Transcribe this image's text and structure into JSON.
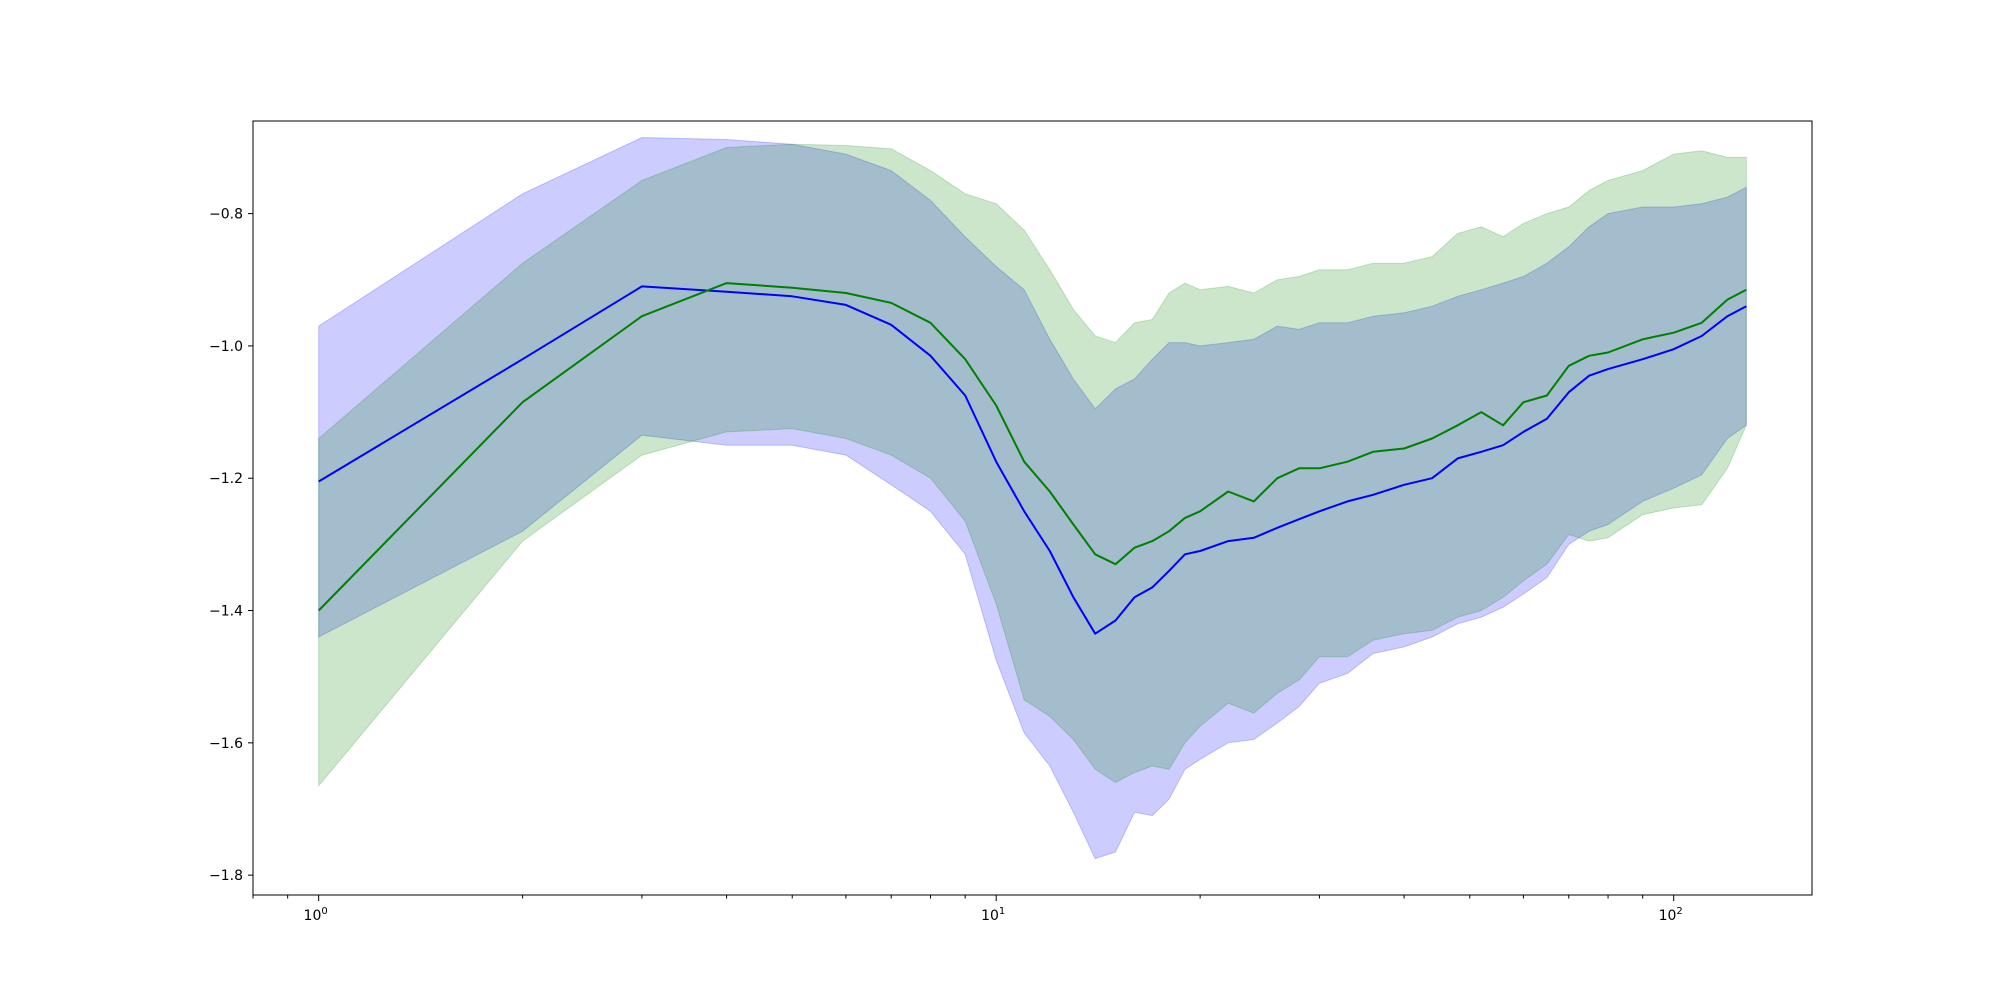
{
  "chart_data": {
    "type": "line",
    "title": "",
    "xlabel": "",
    "ylabel": "",
    "xscale": "log",
    "xlim": [
      0.8,
      160
    ],
    "ylim": [
      -1.83,
      -0.66
    ],
    "grid": false,
    "legend": "none",
    "x_ticks": [
      {
        "value": 1,
        "base": "10",
        "exp": "0"
      },
      {
        "value": 10,
        "base": "10",
        "exp": "1"
      },
      {
        "value": 100,
        "base": "10",
        "exp": "2"
      }
    ],
    "y_ticks": [
      {
        "value": -1.8,
        "label": "−1.8"
      },
      {
        "value": -1.6,
        "label": "−1.6"
      },
      {
        "value": -1.4,
        "label": "−1.4"
      },
      {
        "value": -1.2,
        "label": "−1.2"
      },
      {
        "value": -1.0,
        "label": "−1.0"
      },
      {
        "value": -0.8,
        "label": "−0.8"
      }
    ],
    "series": [
      {
        "color": "#0000ff",
        "band_color": "#0000ff",
        "band_opacity": 0.2,
        "x": [
          1,
          2,
          3,
          4,
          5,
          6,
          7,
          8,
          9,
          10,
          11,
          12,
          13,
          14,
          15,
          16,
          17,
          18,
          19,
          20,
          22,
          24,
          26,
          28,
          30,
          33,
          36,
          40,
          44,
          48,
          52,
          56,
          60,
          65,
          70,
          75,
          80,
          90,
          100,
          110,
          120,
          128
        ],
        "mean": [
          -1.205,
          -1.02,
          -0.91,
          -0.918,
          -0.925,
          -0.938,
          -0.968,
          -1.015,
          -1.075,
          -1.175,
          -1.25,
          -1.31,
          -1.38,
          -1.435,
          -1.415,
          -1.38,
          -1.365,
          -1.34,
          -1.315,
          -1.31,
          -1.295,
          -1.29,
          -1.275,
          -1.262,
          -1.25,
          -1.235,
          -1.225,
          -1.21,
          -1.2,
          -1.17,
          -1.16,
          -1.15,
          -1.13,
          -1.11,
          -1.07,
          -1.045,
          -1.035,
          -1.02,
          -1.005,
          -0.985,
          -0.955,
          -0.94
        ],
        "upper": [
          -0.97,
          -0.77,
          -0.685,
          -0.688,
          -0.695,
          -0.71,
          -0.735,
          -0.78,
          -0.835,
          -0.88,
          -0.915,
          -0.99,
          -1.05,
          -1.095,
          -1.065,
          -1.05,
          -1.02,
          -0.995,
          -0.995,
          -1.0,
          -0.995,
          -0.99,
          -0.97,
          -0.975,
          -0.965,
          -0.965,
          -0.955,
          -0.95,
          -0.94,
          -0.925,
          -0.915,
          -0.905,
          -0.895,
          -0.875,
          -0.85,
          -0.82,
          -0.8,
          -0.79,
          -0.79,
          -0.785,
          -0.775,
          -0.76
        ],
        "lower": [
          -1.44,
          -1.28,
          -1.135,
          -1.15,
          -1.15,
          -1.165,
          -1.21,
          -1.25,
          -1.315,
          -1.475,
          -1.585,
          -1.635,
          -1.705,
          -1.775,
          -1.765,
          -1.705,
          -1.71,
          -1.685,
          -1.64,
          -1.625,
          -1.6,
          -1.595,
          -1.57,
          -1.545,
          -1.51,
          -1.495,
          -1.465,
          -1.455,
          -1.44,
          -1.42,
          -1.41,
          -1.395,
          -1.375,
          -1.35,
          -1.3,
          -1.28,
          -1.27,
          -1.235,
          -1.215,
          -1.195,
          -1.14,
          -1.12
        ]
      },
      {
        "color": "#008000",
        "band_color": "#008000",
        "band_opacity": 0.2,
        "x": [
          1,
          2,
          3,
          4,
          5,
          6,
          7,
          8,
          9,
          10,
          11,
          12,
          13,
          14,
          15,
          16,
          17,
          18,
          19,
          20,
          22,
          24,
          26,
          28,
          30,
          33,
          36,
          40,
          44,
          48,
          52,
          56,
          60,
          65,
          70,
          75,
          80,
          90,
          100,
          110,
          120,
          128
        ],
        "mean": [
          -1.4,
          -1.085,
          -0.955,
          -0.905,
          -0.912,
          -0.92,
          -0.935,
          -0.965,
          -1.02,
          -1.09,
          -1.175,
          -1.22,
          -1.27,
          -1.315,
          -1.33,
          -1.305,
          -1.295,
          -1.28,
          -1.26,
          -1.25,
          -1.22,
          -1.235,
          -1.2,
          -1.185,
          -1.185,
          -1.175,
          -1.16,
          -1.155,
          -1.14,
          -1.12,
          -1.1,
          -1.12,
          -1.085,
          -1.075,
          -1.03,
          -1.015,
          -1.01,
          -0.99,
          -0.98,
          -0.965,
          -0.93,
          -0.915
        ],
        "upper": [
          -1.14,
          -0.875,
          -0.75,
          -0.7,
          -0.695,
          -0.697,
          -0.702,
          -0.735,
          -0.77,
          -0.785,
          -0.825,
          -0.885,
          -0.945,
          -0.985,
          -0.995,
          -0.965,
          -0.96,
          -0.92,
          -0.905,
          -0.915,
          -0.91,
          -0.92,
          -0.9,
          -0.895,
          -0.885,
          -0.885,
          -0.875,
          -0.875,
          -0.865,
          -0.83,
          -0.82,
          -0.835,
          -0.815,
          -0.8,
          -0.79,
          -0.765,
          -0.75,
          -0.735,
          -0.71,
          -0.705,
          -0.715,
          -0.715
        ],
        "lower": [
          -1.665,
          -1.295,
          -1.165,
          -1.13,
          -1.125,
          -1.14,
          -1.165,
          -1.2,
          -1.265,
          -1.39,
          -1.535,
          -1.56,
          -1.595,
          -1.64,
          -1.66,
          -1.645,
          -1.635,
          -1.64,
          -1.6,
          -1.575,
          -1.54,
          -1.555,
          -1.525,
          -1.505,
          -1.47,
          -1.47,
          -1.445,
          -1.435,
          -1.43,
          -1.41,
          -1.4,
          -1.38,
          -1.355,
          -1.33,
          -1.285,
          -1.295,
          -1.29,
          -1.255,
          -1.245,
          -1.24,
          -1.185,
          -1.12
        ]
      }
    ]
  }
}
